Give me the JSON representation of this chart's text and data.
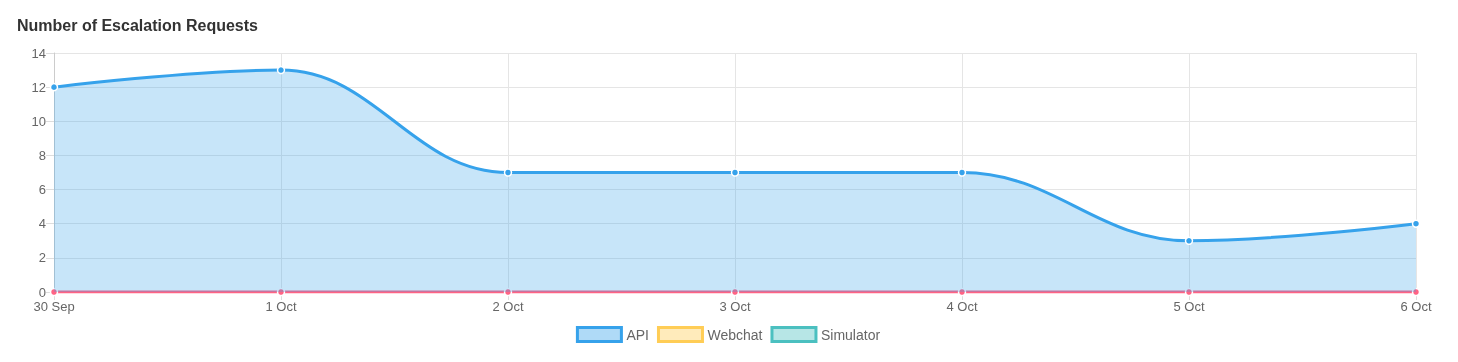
{
  "chart_data": {
    "type": "area",
    "title": "Number of Escalation Requests",
    "categories": [
      "30 Sep",
      "1 Oct",
      "2 Oct",
      "3 Oct",
      "4 Oct",
      "5 Oct",
      "6 Oct"
    ],
    "series": [
      {
        "name": "API",
        "color": "#36a2eb",
        "values": [
          12,
          13,
          7,
          7,
          7,
          3,
          4
        ]
      },
      {
        "type": "line",
        "color": "#ff6384",
        "values": [
          0,
          0,
          0,
          0,
          0,
          0,
          0
        ]
      },
      {
        "name": "Webchat",
        "color": "#ffcd56",
        "values": [
          null,
          null,
          null,
          null,
          null,
          null,
          null
        ]
      },
      {
        "color": "#e4e5e7",
        "values": [
          null,
          null,
          null,
          null,
          null,
          null,
          null
        ]
      },
      {
        "name": "Simulator",
        "color": "#4bc0c0",
        "values": [
          null,
          null,
          null,
          null,
          null,
          null,
          null
        ]
      }
    ],
    "ylim": [
      0,
      14
    ],
    "yticks": [
      0,
      2,
      4,
      6,
      8,
      10,
      12,
      14
    ],
    "grid": true,
    "legend": "bottom",
    "marker": "circle"
  }
}
